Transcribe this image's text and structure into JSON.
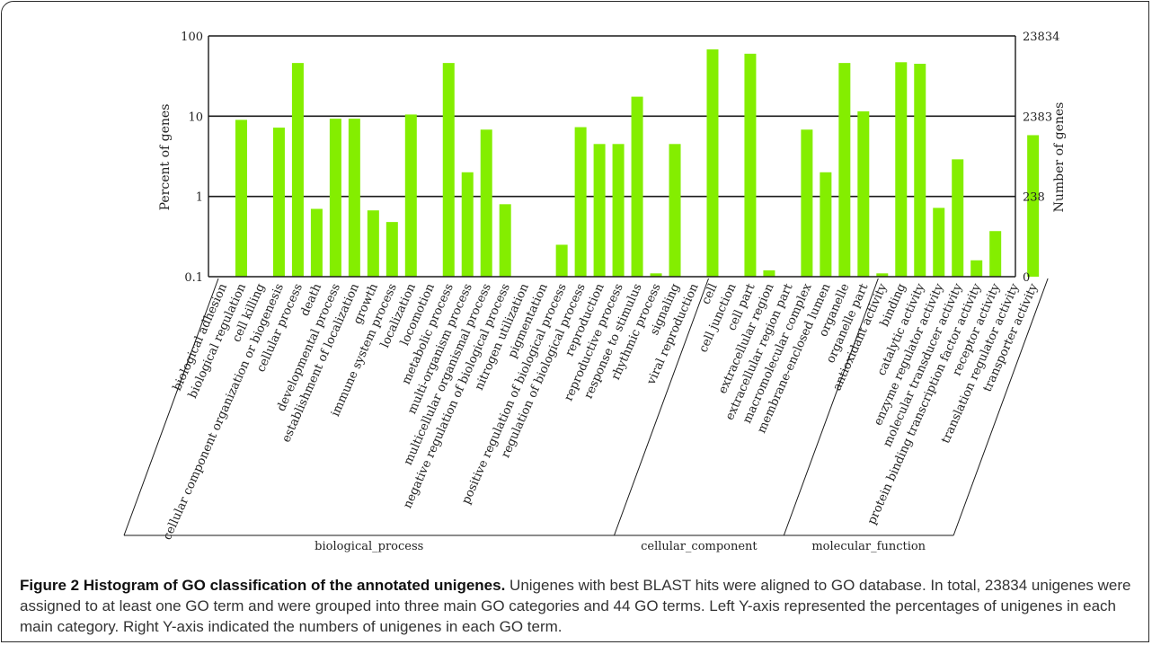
{
  "chart_data": {
    "type": "bar",
    "left_axis_label": "Percent of genes",
    "right_axis_label": "Number of genes",
    "left_ticks": [
      "100",
      "10",
      "1",
      "0.1"
    ],
    "right_ticks": [
      "23834",
      "2383",
      "238",
      "0"
    ],
    "yscale": "log",
    "ylim": [
      0.1,
      100
    ],
    "bar_color": "#84ee00",
    "grid": "major horizontal lines at 1, 10, 100",
    "categories": [
      "biological adhesion",
      "biological regulation",
      "cell killing",
      "cellular component organization or biogenesis",
      "cellular process",
      "death",
      "developmental process",
      "establishment of localization",
      "growth",
      "immune system process",
      "localization",
      "locomotion",
      "metabolic process",
      "multi-organism process",
      "multicellular organismal process",
      "negative regulation of biological process",
      "nitrogen utilization",
      "pigmentation",
      "positive regulation of biological process",
      "regulation of biological process",
      "reproduction",
      "reproductive process",
      "response to stimulus",
      "rhythmic process",
      "signaling",
      "viral reproduction",
      "cell",
      "cell junction",
      "cell part",
      "extracellular region",
      "extracellular region part",
      "macromolecular complex",
      "membrane-enclosed lumen",
      "organelle",
      "organelle part",
      "antioxidant activity",
      "binding",
      "catalytic activity",
      "enzyme regulator activity",
      "molecular transducer activity",
      "protein binding transcription factor activity",
      "receptor activity",
      "translation regulator activity",
      "transporter activity"
    ],
    "values": [
      0.1,
      9.0,
      0.1,
      7.2,
      46,
      0.7,
      9.3,
      9.3,
      0.67,
      0.48,
      10.5,
      0.1,
      46,
      2.0,
      6.8,
      0.8,
      0.1,
      0.1,
      0.25,
      7.3,
      4.5,
      4.5,
      17.5,
      0.11,
      4.5,
      0.1,
      68,
      0.1,
      60,
      0.12,
      0.1,
      6.8,
      2.0,
      46,
      11.5,
      0.11,
      47,
      45,
      0.72,
      2.9,
      0.16,
      0.37,
      0.1,
      5.8
    ],
    "groups": [
      {
        "name": "biological_process",
        "start": 0,
        "end": 25
      },
      {
        "name": "cellular_component",
        "start": 26,
        "end": 34
      },
      {
        "name": "molecular_function",
        "start": 35,
        "end": 43
      }
    ]
  },
  "caption": {
    "title": "Figure 2 Histogram of GO classification of the annotated unigenes.",
    "text": " Unigenes with best BLAST hits were aligned to GO database. In total, 23834 unigenes were assigned to at least one GO term and were grouped into three main GO categories and 44 GO terms. Left Y-axis represented the percentages of unigenes in each main category. Right Y-axis indicated the numbers of unigenes in each GO term."
  }
}
